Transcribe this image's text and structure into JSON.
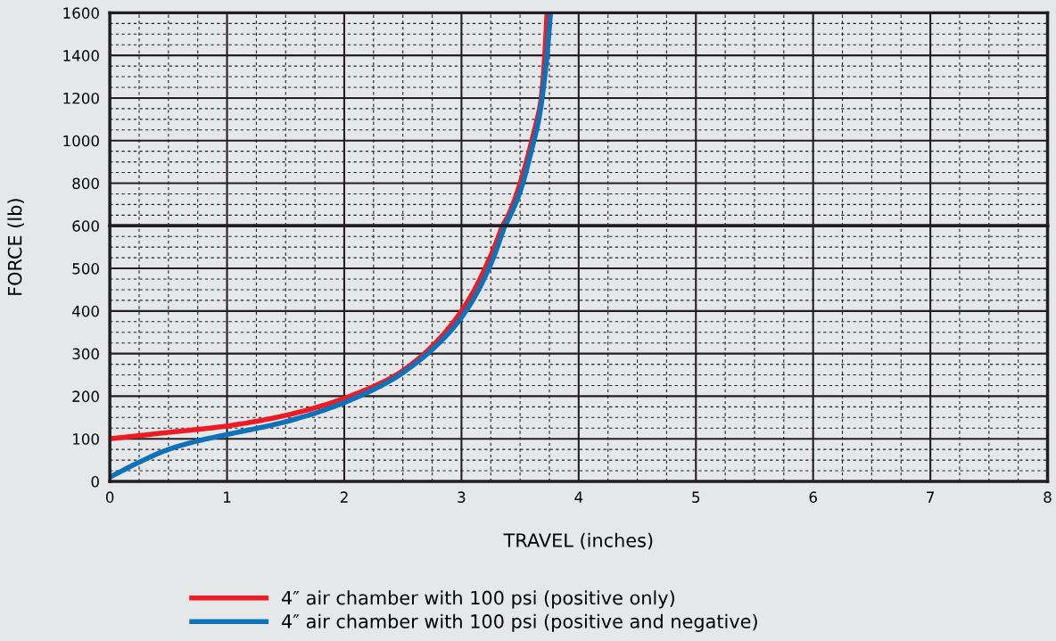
{
  "chart_data": [
    {
      "type": "line",
      "xlim": [
        0,
        8
      ],
      "xticks": [
        0,
        1,
        2,
        3,
        4,
        5,
        6,
        7,
        8
      ],
      "ylim": [
        600,
        1600
      ],
      "yticks": [
        800,
        1000,
        1200,
        1400,
        1600
      ],
      "tick_labels": "y",
      "grid": true,
      "marker": "none",
      "line_style": "solid",
      "series": [
        {
          "color": "#ed1c24",
          "x": [
            3.35,
            3.4,
            3.5,
            3.6,
            3.68,
            3.71,
            3.73
          ],
          "values": [
            600,
            650,
            800,
            1000,
            1200,
            1400,
            1600
          ]
        },
        {
          "color": "#0d72ba",
          "x": [
            3.37,
            3.4,
            3.5,
            3.6,
            3.66,
            3.7,
            3.73,
            3.76
          ],
          "values": [
            600,
            630,
            760,
            960,
            1100,
            1250,
            1400,
            1600
          ]
        }
      ]
    },
    {
      "type": "line",
      "xlabel": "TRAVEL (inches)",
      "ylabel": "FORCE (lb)",
      "xlim": [
        0,
        8
      ],
      "xticks": [
        0,
        1,
        2,
        3,
        4,
        5,
        6,
        7,
        8
      ],
      "ylim": [
        0,
        600
      ],
      "yticks": [
        0,
        100,
        200,
        300,
        400,
        500,
        600
      ],
      "grid": true,
      "legend": "bottom",
      "marker": "none",
      "line_style": "solid",
      "series": [
        {
          "name": "4″ air chamber with 100 psi (positive only)",
          "color": "#ed1c24",
          "x": [
            0,
            0.5,
            1,
            1.5,
            2,
            2.5,
            3,
            3.25,
            3.35
          ],
          "values": [
            100,
            115,
            130,
            155,
            195,
            260,
            400,
            530,
            600
          ]
        },
        {
          "name": "4″ air chamber with 100 psi (positive and negative)",
          "color": "#0d72ba",
          "x": [
            0,
            0.25,
            0.5,
            0.75,
            1,
            1.5,
            2,
            2.5,
            3,
            3.25,
            3.37
          ],
          "values": [
            10,
            45,
            75,
            95,
            110,
            140,
            185,
            255,
            385,
            510,
            600
          ]
        }
      ]
    }
  ]
}
